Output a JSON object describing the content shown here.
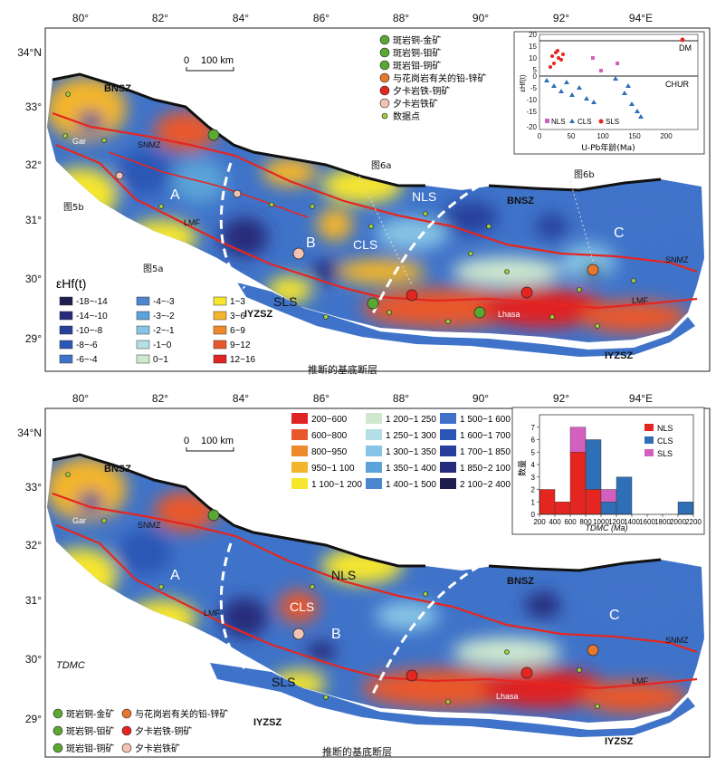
{
  "top": {
    "lon_labels": [
      "80°",
      "82°",
      "84°",
      "86°",
      "88°",
      "90°",
      "92°",
      "94°E"
    ],
    "lat_labels": [
      "34°N",
      "33°",
      "32°",
      "31°",
      "30°",
      "29°"
    ],
    "scale": {
      "zero": "0",
      "text": "100 km"
    },
    "map_labels": {
      "bnsz_w": "BNSZ",
      "bnsz_e": "BNSZ",
      "snmz_w": "SNMZ",
      "snmz_e": "SNMZ",
      "lmf_w": "LMF",
      "lmf_e": "LMF",
      "iyzsz_w": "IYZSZ",
      "iyzsz_e": "IYZSZ",
      "a": "A",
      "b": "B",
      "c": "C",
      "nls": "NLS",
      "cls": "CLS",
      "sls": "SLS",
      "gar": "Gar",
      "lhasa": "Lhasa",
      "fig6a": "图6a",
      "fig6b": "图6b",
      "fig5a": "图5a",
      "fig5b": "图5b",
      "fault": "推断的基底断层"
    },
    "deposit_legend": [
      {
        "label": "斑岩铜-金矿",
        "color": "#5aa832"
      },
      {
        "label": "斑岩铜-钼矿",
        "color": "#5aa832"
      },
      {
        "label": "斑岩钼-铜矿",
        "color": "#5aa832"
      },
      {
        "label": "与花岗岩有关的铅-锌矿",
        "color": "#e6782d"
      },
      {
        "label": "夕卡岩铁-铜矿",
        "color": "#e52620"
      },
      {
        "label": "夕卡岩铁矿",
        "color": "#f2c3b4"
      },
      {
        "label": "数据点",
        "color": "#9ccc3c"
      }
    ],
    "value_legend": {
      "title": "εHf(t)",
      "items": [
        {
          "label": "-18~-14",
          "color": "#1f1f4d"
        },
        {
          "label": "-14~-10",
          "color": "#252a7a"
        },
        {
          "label": "-10~-8",
          "color": "#28409c"
        },
        {
          "label": "-8~-6",
          "color": "#2c56b5"
        },
        {
          "label": "-6~-4",
          "color": "#3f73c9"
        },
        {
          "label": "-4~-3",
          "color": "#4c86cf"
        },
        {
          "label": "-3~-2",
          "color": "#5ba3d8"
        },
        {
          "label": "-2~-1",
          "color": "#86c5e5"
        },
        {
          "label": "-1~0",
          "color": "#b4dfe6"
        },
        {
          "label": "0~1",
          "color": "#cfe9cf"
        },
        {
          "label": "1~3",
          "color": "#f6e62e"
        },
        {
          "label": "3~6",
          "color": "#f3b52c"
        },
        {
          "label": "6~9",
          "color": "#ef8a2a"
        },
        {
          "label": "9~12",
          "color": "#e9582a"
        },
        {
          "label": "12~16",
          "color": "#e02323"
        }
      ]
    },
    "inset": {
      "ylabel": "εHf(t)",
      "xlabel": "U-Pb年龄(Ma)",
      "dm": "DM",
      "chur": "CHUR",
      "legend": [
        "NLS",
        "CLS",
        "SLS"
      ]
    }
  },
  "bottom": {
    "lon_labels": [
      "80°",
      "82°",
      "84°",
      "86°",
      "88°",
      "90°",
      "92°",
      "94°E"
    ],
    "lat_labels": [
      "34°N",
      "33°",
      "32°",
      "31°",
      "30°",
      "29°"
    ],
    "scale": {
      "zero": "0",
      "text": "100 km"
    },
    "map_labels": {
      "bnsz_w": "BNSZ",
      "bnsz_e": "BNSZ",
      "snmz_w": "SNMZ",
      "snmz_e": "SNMZ",
      "lmf_w": "LMF",
      "lmf_e": "LMF",
      "iyzsz_w": "IYZSZ",
      "iyzsz_e": "IYZSZ",
      "a": "A",
      "b": "B",
      "c": "C",
      "nls": "NLS",
      "cls": "CLS",
      "sls": "SLS",
      "gar": "Gar",
      "lhasa": "Lhasa",
      "tdm": "TDMC",
      "fault": "推断的基底断层"
    },
    "value_legend": [
      {
        "label": "200~600",
        "color": "#e02323"
      },
      {
        "label": "600~800",
        "color": "#e9582a"
      },
      {
        "label": "800~950",
        "color": "#ef8a2a"
      },
      {
        "label": "950~1 100",
        "color": "#f3b52c"
      },
      {
        "label": "1 100~1 200",
        "color": "#f6e62e"
      },
      {
        "label": "1 200~1 250",
        "color": "#cfe9cf"
      },
      {
        "label": "1 250~1 300",
        "color": "#b4dfe6"
      },
      {
        "label": "1 300~1 350",
        "color": "#86c5e5"
      },
      {
        "label": "1 350~1 400",
        "color": "#5ba3d8"
      },
      {
        "label": "1 400~1 500",
        "color": "#4c86cf"
      },
      {
        "label": "1 500~1 600",
        "color": "#3f73c9"
      },
      {
        "label": "1 600~1 700",
        "color": "#2c56b5"
      },
      {
        "label": "1 700~1 850",
        "color": "#28409c"
      },
      {
        "label": "1 850~2 100",
        "color": "#252a7a"
      },
      {
        "label": "2 100~2 400",
        "color": "#1f1f4d"
      }
    ],
    "deposit_legend": [
      {
        "label": "斑岩铜-金矿"
      },
      {
        "label": "与花岗岩有关的铅-锌矿"
      },
      {
        "label": "斑岩铜-钼矿"
      },
      {
        "label": "夕卡岩铁-铜矿"
      },
      {
        "label": "斑岩钼-铜矿"
      },
      {
        "label": "夕卡岩铁矿"
      }
    ],
    "histogram": {
      "ylabel": "数量",
      "xlabel": "TDMC (Ma)",
      "legend": [
        {
          "name": "NLS",
          "color": "#e52620"
        },
        {
          "name": "CLS",
          "color": "#2f6fb5"
        },
        {
          "name": "SLS",
          "color": "#d35fbf"
        }
      ]
    }
  },
  "chart_data": {
    "type": "bar",
    "xlabel": "TDMC (Ma)",
    "ylabel": "数量",
    "x_ticks": [
      200,
      400,
      600,
      800,
      1000,
      1200,
      1400,
      1600,
      1800,
      2000,
      2200
    ],
    "y_ticks": [
      0,
      1,
      2,
      3,
      4,
      5,
      6,
      7
    ],
    "xlim": [
      200,
      2200
    ],
    "ylim": [
      0,
      8
    ],
    "bin_width": 200,
    "bins": [
      200,
      400,
      600,
      800,
      1000,
      1200,
      1400,
      1600,
      1800,
      2000
    ],
    "series": [
      {
        "name": "NLS",
        "values": [
          2,
          1,
          5,
          2,
          0,
          0,
          0,
          0,
          0,
          0
        ]
      },
      {
        "name": "CLS",
        "values": [
          0,
          0,
          0,
          4,
          1,
          3,
          0,
          0,
          0,
          1
        ]
      },
      {
        "name": "SLS",
        "values": [
          0,
          0,
          2,
          0,
          1,
          0,
          0,
          0,
          0,
          0
        ]
      }
    ]
  }
}
